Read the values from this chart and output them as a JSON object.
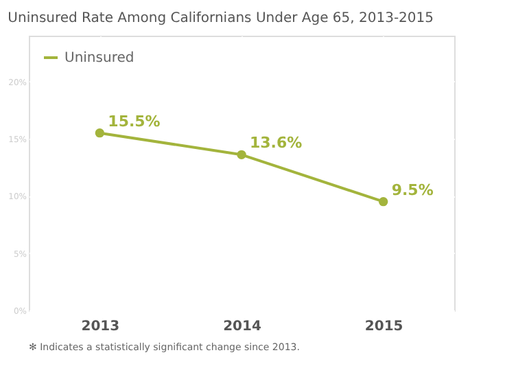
{
  "chart_data": {
    "type": "line",
    "title": "Uninsured Rate Among Californians Under Age 65, 2013-2015",
    "categories": [
      "2013",
      "2014",
      "2015"
    ],
    "series": [
      {
        "name": "Uninsured",
        "color": "#a3b43c",
        "values": [
          15.5,
          13.6,
          9.5
        ],
        "value_labels": [
          "15.5%",
          "13.6%",
          "9.5%"
        ]
      }
    ],
    "ylim": [
      0,
      24
    ],
    "yticks": [
      {
        "value": 0,
        "label": "0%"
      },
      {
        "value": 5,
        "label": "5%"
      },
      {
        "value": 10,
        "label": "10%"
      },
      {
        "value": 15,
        "label": "15%"
      },
      {
        "value": 20,
        "label": "20%"
      }
    ],
    "grid": true,
    "legend": "top left",
    "marker": "circle",
    "line_style": "solid",
    "annotations": [
      "✻ Indicates a statistically significant change since 2013."
    ]
  }
}
